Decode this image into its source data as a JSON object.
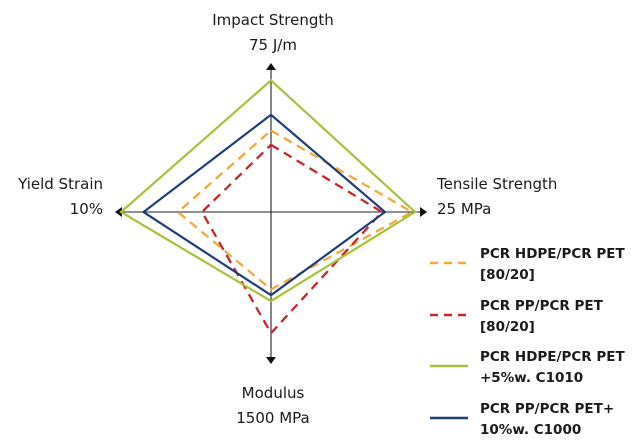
{
  "chart_data": {
    "type": "radar",
    "title": "",
    "axes": [
      {
        "key": "top",
        "name": "Impact Strength",
        "max": "75 J/m"
      },
      {
        "key": "right",
        "name": "Tensile Strength",
        "max": "25 MPa"
      },
      {
        "key": "bottom",
        "name": "Modulus",
        "max": "1500 MPa"
      },
      {
        "key": "left",
        "name": "Yield Strain",
        "max": "10%"
      }
    ],
    "axis_order": [
      "Impact Strength",
      "Tensile Strength",
      "Modulus",
      "Yield Strain"
    ],
    "value_scale": "fraction of axis maximum (axis end = 1.0)",
    "series": [
      {
        "name": "PCR HDPE/PCR PET [80/20]",
        "name_lines": [
          "PCR HDPE/PCR PET",
          "[80/20]"
        ],
        "color": "#f2a93b",
        "style": "dashed",
        "values": [
          0.57,
          0.94,
          0.53,
          0.62
        ]
      },
      {
        "name": "PCR PP/PCR PET [80/20]",
        "name_lines": [
          "PCR PP/PCR PET",
          "[80/20]"
        ],
        "color": "#c8262e",
        "style": "dashed",
        "values": [
          0.47,
          0.74,
          0.83,
          0.46
        ]
      },
      {
        "name": "PCR HDPE/PCR PET +5%w. C1010",
        "name_lines": [
          "PCR HDPE/PCR PET",
          "+5%w. C1010"
        ],
        "color": "#a8c23a",
        "style": "solid",
        "values": [
          0.92,
          0.96,
          0.61,
          1.0
        ]
      },
      {
        "name": "PCR PP/PCR PET+ 10%w. C1000",
        "name_lines": [
          "PCR PP/PCR PET+",
          "10%w. C1000"
        ],
        "color": "#1f3d7a",
        "style": "solid",
        "values": [
          0.68,
          0.76,
          0.57,
          0.85
        ]
      }
    ],
    "legend_position": "bottom-right",
    "grid": false
  }
}
